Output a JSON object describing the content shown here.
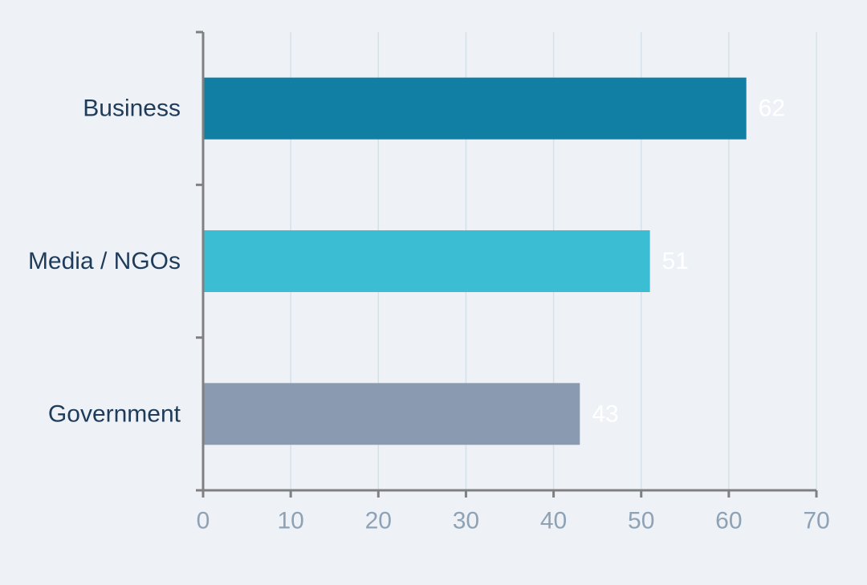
{
  "chart_data": {
    "type": "bar",
    "orientation": "horizontal",
    "categories": [
      "Business",
      "Media / NGOs",
      "Government"
    ],
    "values": [
      62,
      51,
      43
    ],
    "colors": [
      "#117fa3",
      "#3bbed4",
      "#8a9bb1"
    ],
    "data_labels": [
      "62",
      "51",
      "43"
    ],
    "xlim": [
      0,
      70
    ],
    "xticks": [
      0,
      10,
      20,
      30,
      40,
      50,
      60,
      70
    ],
    "xtick_labels": [
      "0",
      "10",
      "20",
      "30",
      "40",
      "50",
      "60",
      "70"
    ],
    "title": "",
    "xlabel": "",
    "ylabel": "",
    "grid": "vertical",
    "legend": "none"
  },
  "style": {
    "background": "#eef2f7",
    "axis_color": "#808080",
    "grid_color": "#d5e1ea",
    "category_label_color": "#1f3b5a",
    "tick_label_color": "#8fa2b5",
    "value_label_color": "#ffffff"
  }
}
